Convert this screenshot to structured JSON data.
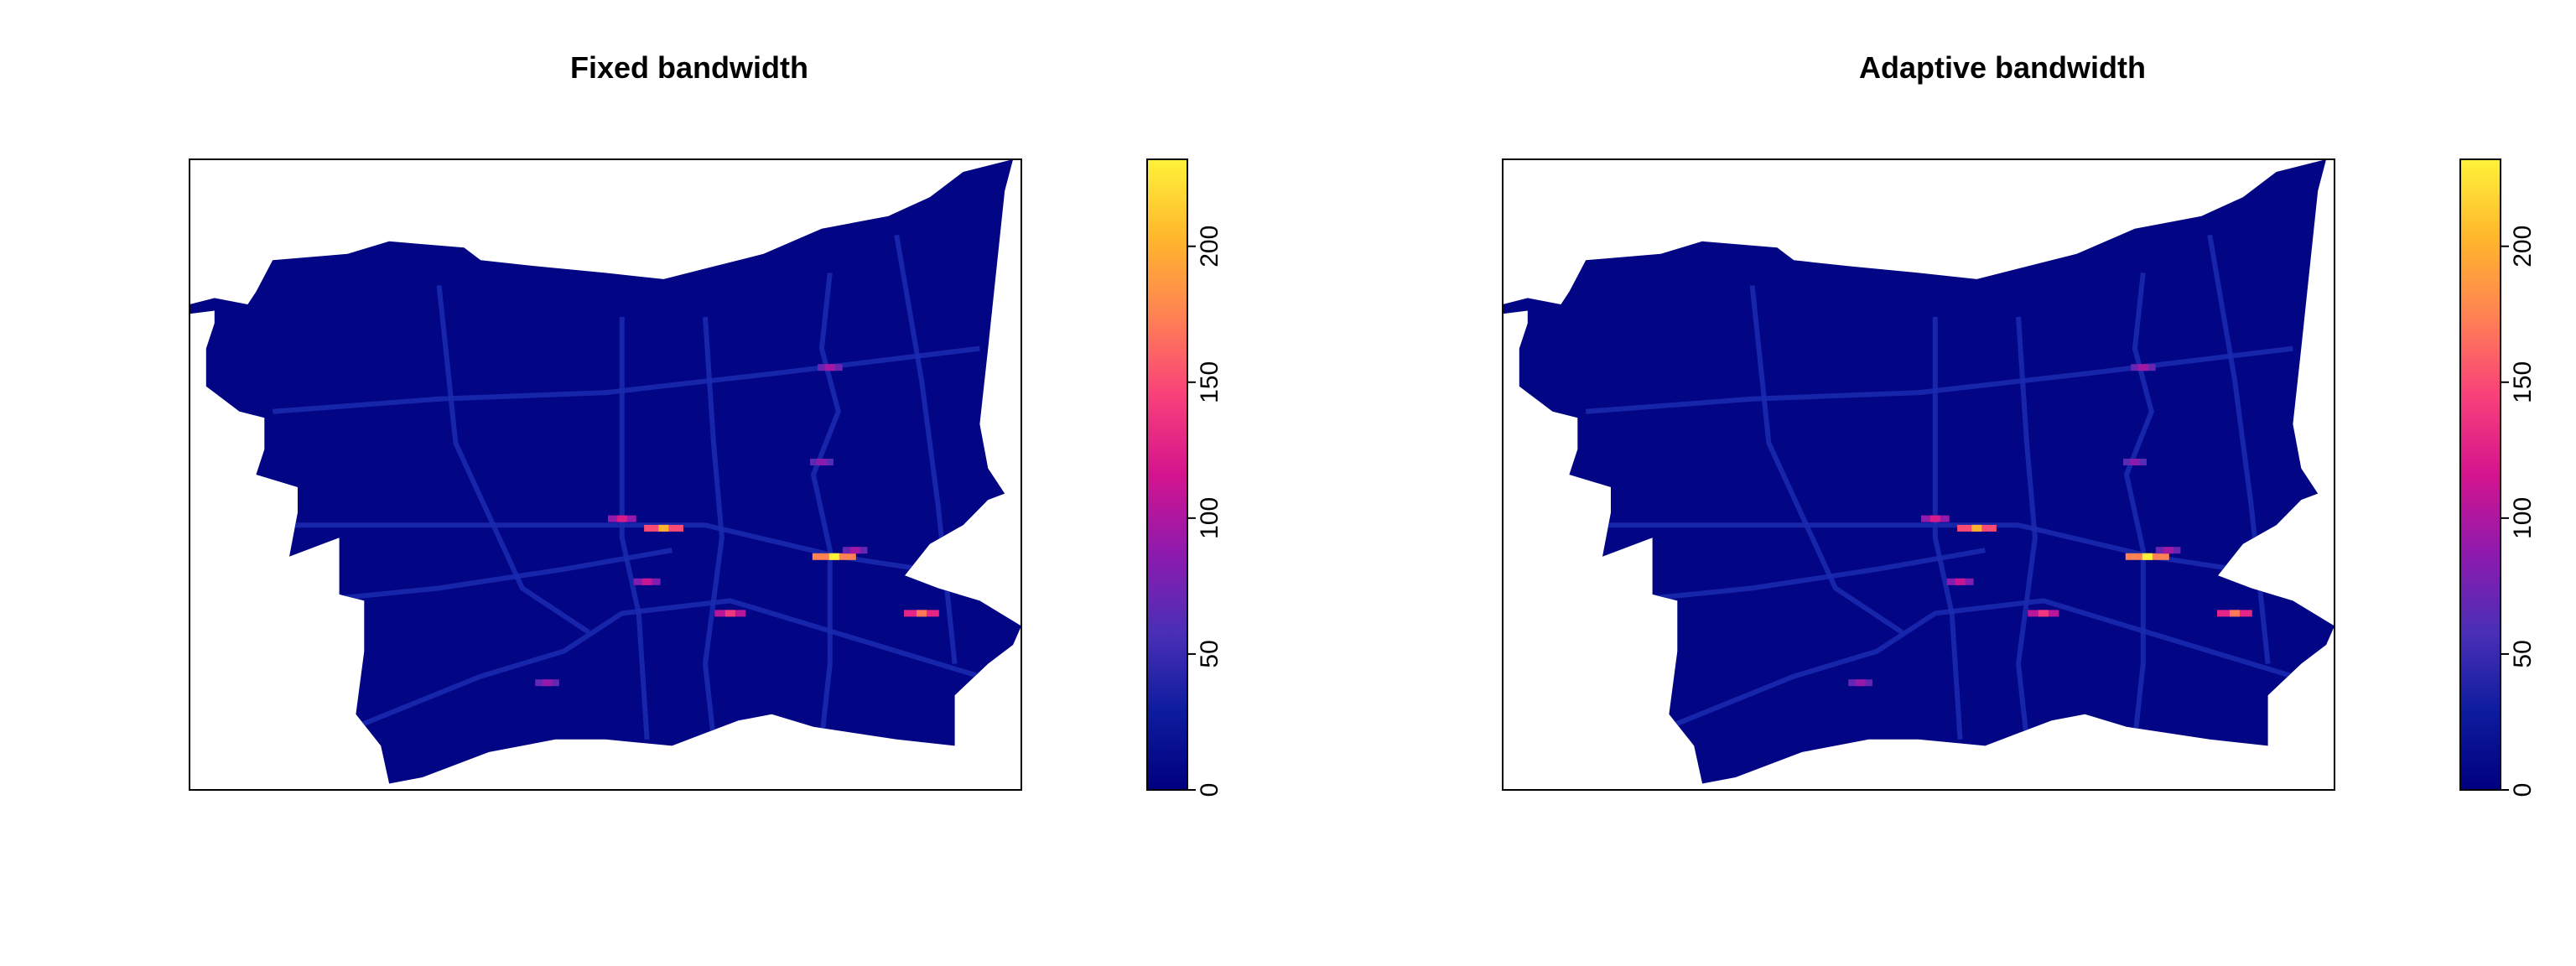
{
  "chart_data": [
    {
      "type": "heatmap",
      "title": "Fixed bandwidth",
      "xlabel": "",
      "ylabel": "",
      "legend": "right",
      "colorbar": {
        "min": 0,
        "max": 232,
        "ticks": [
          0,
          50,
          100,
          150,
          200
        ]
      },
      "colormap": [
        "#00007F",
        "#0D1C9E",
        "#4A2FB6",
        "#8E1AAE",
        "#D4148E",
        "#F8407A",
        "#FF8154",
        "#FFB62C",
        "#FFF23A"
      ],
      "background_value": 5,
      "hotspots": [
        {
          "x": 0.775,
          "y": 0.63,
          "value": 232
        },
        {
          "x": 0.57,
          "y": 0.585,
          "value": 200
        },
        {
          "x": 0.52,
          "y": 0.57,
          "value": 120
        },
        {
          "x": 0.88,
          "y": 0.72,
          "value": 170
        },
        {
          "x": 0.65,
          "y": 0.72,
          "value": 140
        },
        {
          "x": 0.55,
          "y": 0.67,
          "value": 110
        },
        {
          "x": 0.43,
          "y": 0.83,
          "value": 90
        },
        {
          "x": 0.77,
          "y": 0.33,
          "value": 95
        },
        {
          "x": 0.76,
          "y": 0.48,
          "value": 85
        },
        {
          "x": 0.8,
          "y": 0.62,
          "value": 95
        }
      ]
    },
    {
      "type": "heatmap",
      "title": "Adaptive bandwidth",
      "xlabel": "",
      "ylabel": "",
      "legend": "right",
      "colorbar": {
        "min": 0,
        "max": 232,
        "ticks": [
          0,
          50,
          100,
          150,
          200
        ]
      },
      "colormap": [
        "#00007F",
        "#0D1C9E",
        "#4A2FB6",
        "#8E1AAE",
        "#D4148E",
        "#F8407A",
        "#FF8154",
        "#FFB62C",
        "#FFF23A"
      ],
      "background_value": 5,
      "hotspots": [
        {
          "x": 0.775,
          "y": 0.63,
          "value": 232
        },
        {
          "x": 0.57,
          "y": 0.585,
          "value": 200
        },
        {
          "x": 0.52,
          "y": 0.57,
          "value": 120
        },
        {
          "x": 0.88,
          "y": 0.72,
          "value": 170
        },
        {
          "x": 0.65,
          "y": 0.72,
          "value": 140
        },
        {
          "x": 0.55,
          "y": 0.67,
          "value": 110
        },
        {
          "x": 0.43,
          "y": 0.83,
          "value": 90
        },
        {
          "x": 0.77,
          "y": 0.33,
          "value": 95
        },
        {
          "x": 0.76,
          "y": 0.48,
          "value": 85
        },
        {
          "x": 0.8,
          "y": 0.62,
          "value": 95
        }
      ]
    }
  ]
}
